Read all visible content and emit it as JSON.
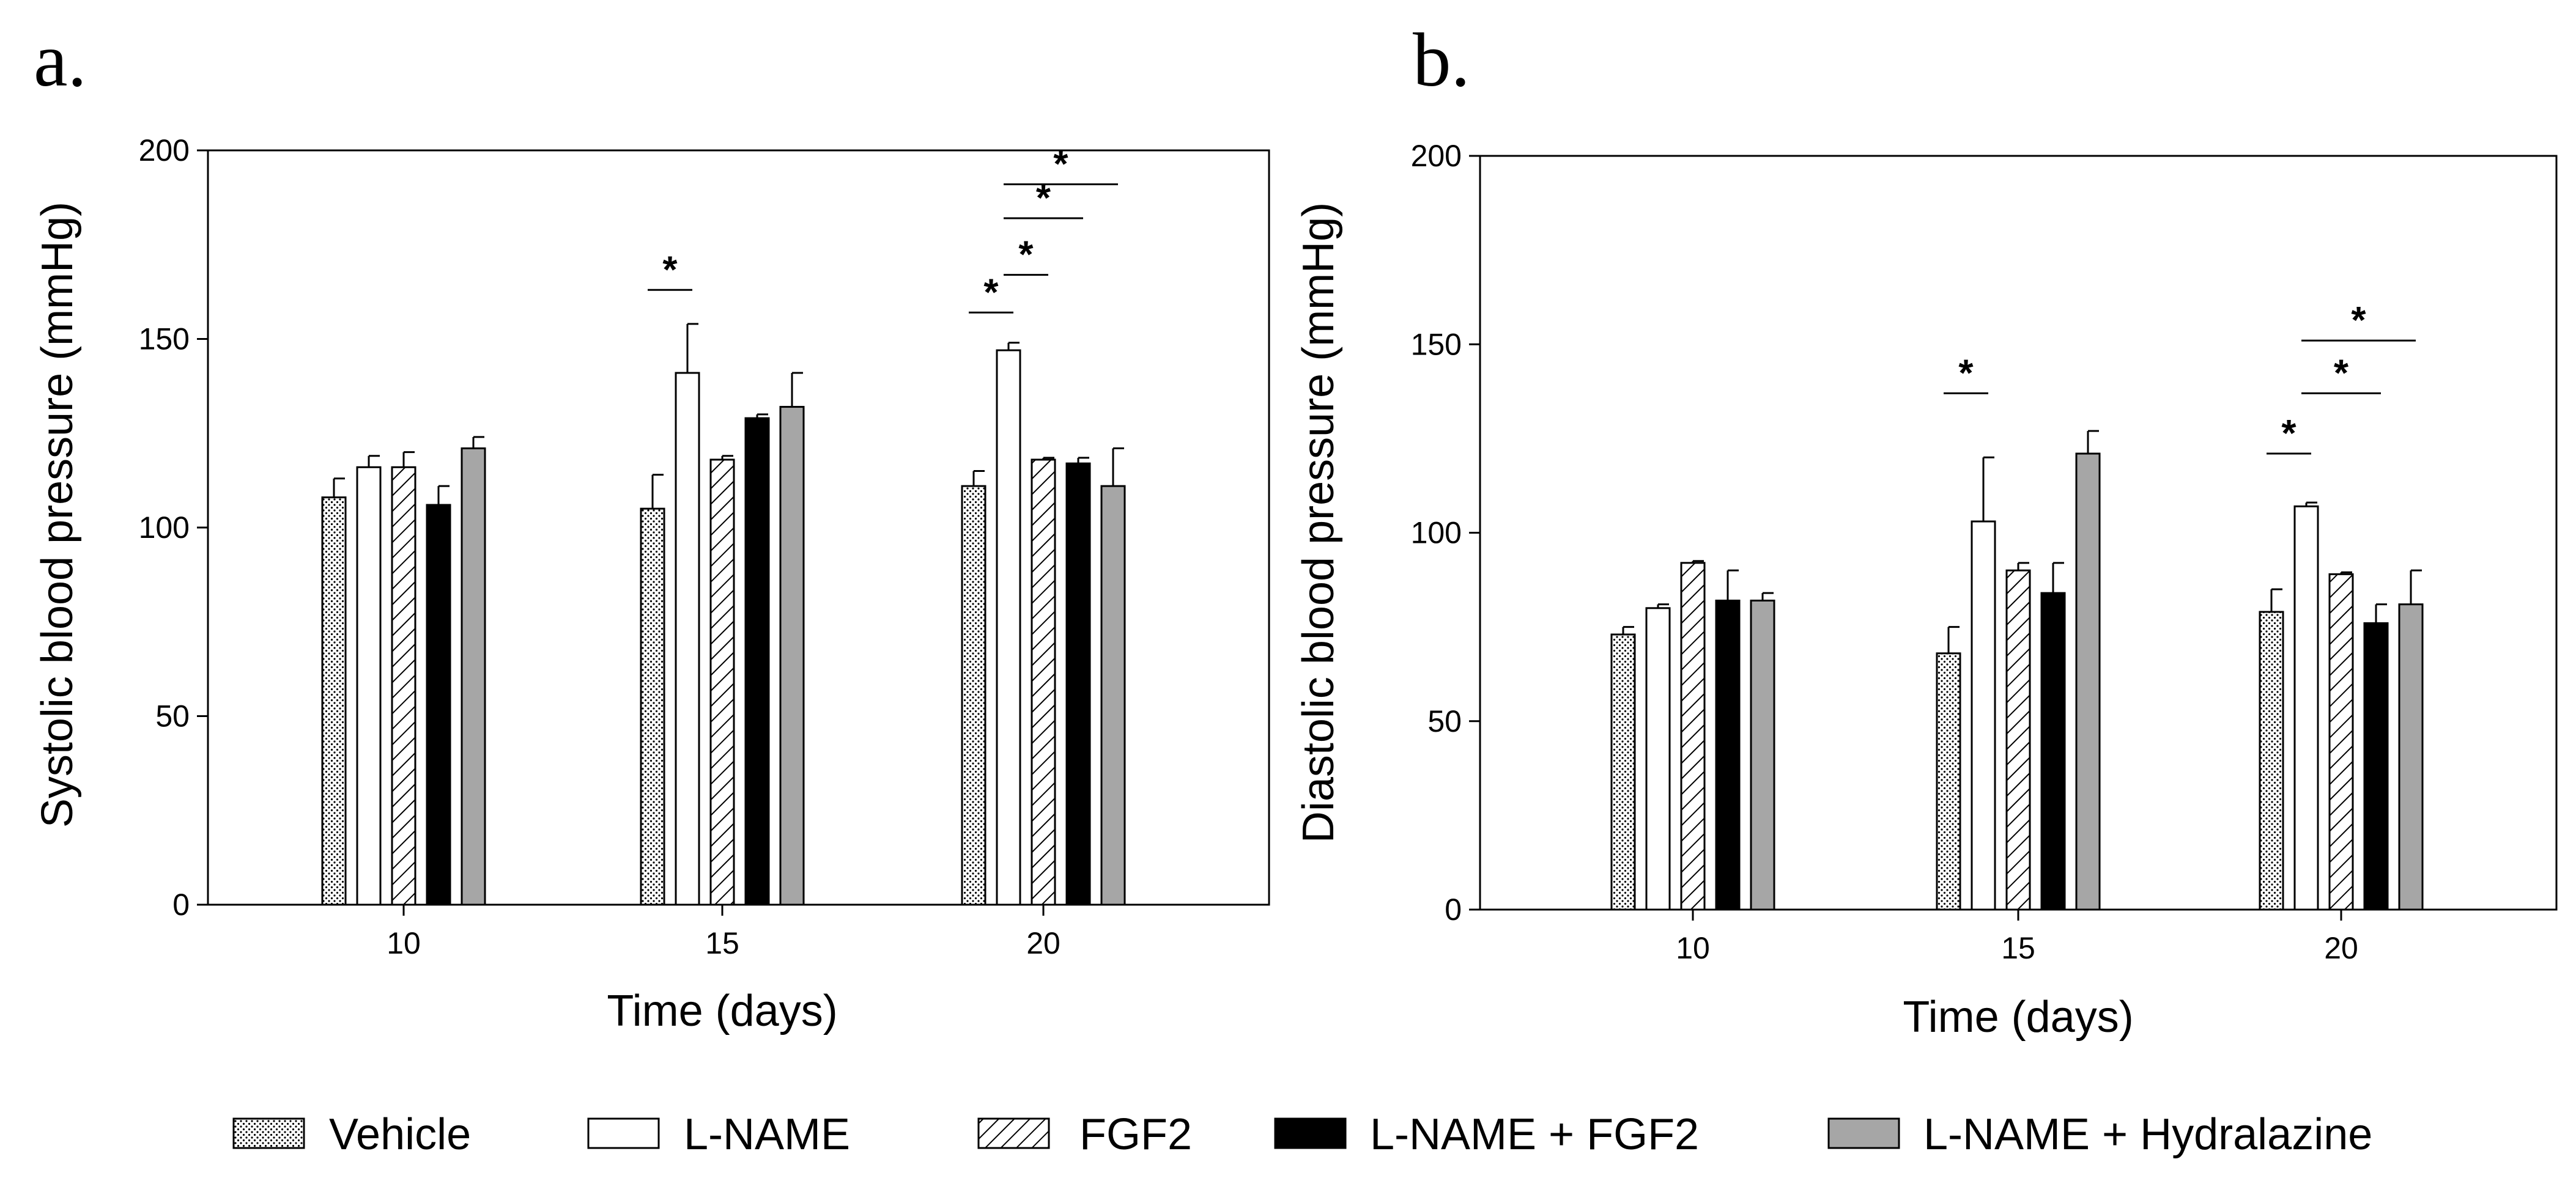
{
  "legend": [
    {
      "label": "Vehicle",
      "pattern": "dots"
    },
    {
      "label": "L-NAME",
      "pattern": "white"
    },
    {
      "label": "FGF2",
      "pattern": "hatch"
    },
    {
      "label": "L-NAME + FGF2",
      "pattern": "black"
    },
    {
      "label": "L-NAME + Hydralazine",
      "pattern": "gray"
    }
  ],
  "colors": {
    "black": "#000000",
    "white": "#ffffff",
    "gray": "#a6a6a6"
  },
  "chart_data": [
    {
      "type": "bar",
      "panel_label": "a.",
      "xlabel": "Time (days)",
      "ylabel": "Systolic blood pressure (mmHg)",
      "categories": [
        "10",
        "15",
        "20"
      ],
      "ylim": [
        0,
        200
      ],
      "yticks": [
        0,
        50,
        100,
        150,
        200
      ],
      "series": [
        {
          "name": "Vehicle",
          "values": [
            108,
            105,
            111
          ],
          "errors": [
            5,
            9,
            4
          ]
        },
        {
          "name": "L-NAME",
          "values": [
            116,
            141,
            147
          ],
          "errors": [
            3,
            13,
            2
          ]
        },
        {
          "name": "FGF2",
          "values": [
            116,
            118,
            118
          ],
          "errors": [
            4,
            1,
            0.5
          ]
        },
        {
          "name": "L-NAME + FGF2",
          "values": [
            106,
            129,
            117
          ],
          "errors": [
            5,
            1,
            1.5
          ]
        },
        {
          "name": "L-NAME + Hydralazine",
          "values": [
            121,
            132,
            111
          ],
          "errors": [
            3,
            9,
            10
          ]
        }
      ],
      "significance": [
        {
          "category": "15",
          "from": 0,
          "to": 1,
          "y": 163,
          "label": "*"
        },
        {
          "category": "20",
          "from": 0,
          "to": 1,
          "y": 157,
          "label": "*"
        },
        {
          "category": "20",
          "from": 1,
          "to": 2,
          "y": 167,
          "label": "*"
        },
        {
          "category": "20",
          "from": 1,
          "to": 3,
          "y": 182,
          "label": "*"
        },
        {
          "category": "20",
          "from": 1,
          "to": 4,
          "y": 191,
          "label": "*"
        }
      ]
    },
    {
      "type": "bar",
      "panel_label": "b.",
      "xlabel": "Time (days)",
      "ylabel": "Diastolic blood pressure (mmHg)",
      "categories": [
        "10",
        "15",
        "20"
      ],
      "ylim": [
        0,
        200
      ],
      "yticks": [
        0,
        50,
        100,
        150,
        200
      ],
      "series": [
        {
          "name": "Vehicle",
          "values": [
            73,
            68,
            79
          ],
          "errors": [
            2,
            7,
            6
          ]
        },
        {
          "name": "L-NAME",
          "values": [
            80,
            103,
            107
          ],
          "errors": [
            1,
            17,
            1
          ]
        },
        {
          "name": "FGF2",
          "values": [
            92,
            90,
            89
          ],
          "errors": [
            0.5,
            2,
            0.5
          ]
        },
        {
          "name": "L-NAME + FGF2",
          "values": [
            82,
            84,
            76
          ],
          "errors": [
            8,
            8,
            5
          ]
        },
        {
          "name": "L-NAME + Hydralazine",
          "values": [
            82,
            121,
            81
          ],
          "errors": [
            2,
            6,
            9
          ]
        }
      ],
      "significance": [
        {
          "category": "15",
          "from": 0,
          "to": 1,
          "y": 137,
          "label": "*"
        },
        {
          "category": "20",
          "from": 0,
          "to": 1,
          "y": 121,
          "label": "*"
        },
        {
          "category": "20",
          "from": 1,
          "to": 3,
          "y": 137,
          "label": "*"
        },
        {
          "category": "20",
          "from": 1,
          "to": 4,
          "y": 151,
          "label": "*"
        }
      ]
    }
  ]
}
